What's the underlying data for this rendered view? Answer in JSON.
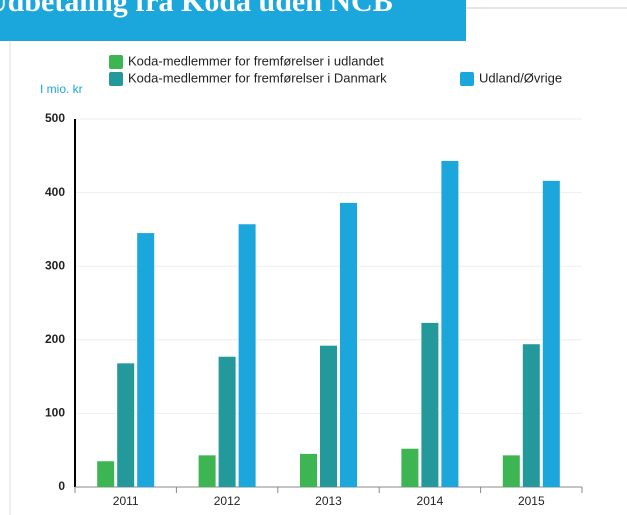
{
  "chart_data": {
    "type": "bar",
    "title": "Udbetaling fra Koda uden NCB",
    "y_unit": "I mio. kr",
    "categories": [
      "2011",
      "2012",
      "2013",
      "2014",
      "2015"
    ],
    "series": [
      {
        "name": "Koda-medlemmer for fremførelser i udlandet",
        "color": "#3cb552",
        "values": [
          35,
          43,
          45,
          52,
          43
        ]
      },
      {
        "name": "Koda-medlemmer for fremførelser i Danmark",
        "color": "#23999c",
        "values": [
          168,
          177,
          192,
          223,
          194
        ]
      },
      {
        "name": "Udland/Øvrige",
        "color": "#1ba6dc",
        "values": [
          345,
          357,
          386,
          443,
          416
        ]
      }
    ],
    "ylim": [
      0,
      500
    ],
    "yticks": [
      0,
      100,
      200,
      300,
      400,
      500
    ],
    "grid": true
  }
}
